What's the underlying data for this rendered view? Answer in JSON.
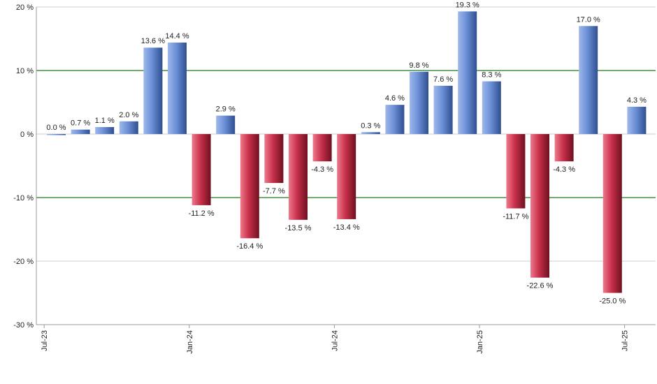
{
  "chart_data": {
    "type": "bar",
    "title": "",
    "xlabel": "",
    "ylabel": "",
    "ylim": [
      -30,
      20
    ],
    "y_ticks": [
      20,
      10,
      0,
      -10,
      -20,
      -30
    ],
    "y_tick_labels": [
      "20 %",
      "10 %",
      "0 %",
      "-10 %",
      "-20 %",
      "-30 %"
    ],
    "x_tick_labels": [
      "Jul-23",
      "Jan-24",
      "Jul-24",
      "Jan-25",
      "Jul-25"
    ],
    "x_tick_after_bar_index": [
      -1,
      5,
      11,
      17,
      23
    ],
    "highlight_gridlines": [
      10,
      -10
    ],
    "grid": true,
    "positive_color": "#6b8fd6",
    "negative_color": "#c8304a",
    "values": [
      0.0,
      0.7,
      1.1,
      2.0,
      13.6,
      14.4,
      -11.2,
      2.9,
      -16.4,
      -7.7,
      -13.5,
      -4.3,
      -13.4,
      0.3,
      4.6,
      9.8,
      7.6,
      19.3,
      8.3,
      -11.7,
      -22.6,
      -4.3,
      17.0,
      -25.0,
      4.3
    ],
    "labels": [
      "0.0 %",
      "0.7 %",
      "1.1 %",
      "2.0 %",
      "13.6 %",
      "14.4 %",
      "-11.2 %",
      "2.9 %",
      "-16.4 %",
      "-7.7 %",
      "-13.5 %",
      "-4.3 %",
      "-13.4 %",
      "0.3 %",
      "4.6 %",
      "9.8 %",
      "7.6 %",
      "19.3 %",
      "8.3 %",
      "-11.7 %",
      "-22.6 %",
      "-4.3 %",
      "17.0 %",
      "-25.0 %",
      "4.3 %"
    ]
  }
}
